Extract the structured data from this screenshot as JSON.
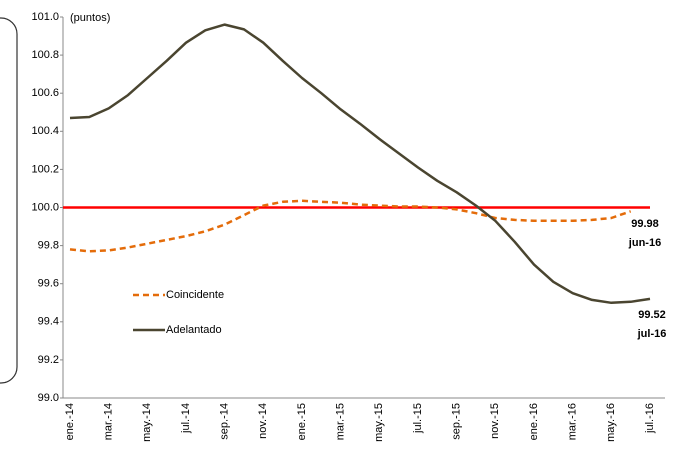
{
  "chart_data": {
    "type": "line",
    "unit_label": "(puntos)",
    "categories": [
      "ene.-14",
      null,
      "mar.-14",
      null,
      "may.-14",
      null,
      "jul.-14",
      null,
      "sep.-14",
      null,
      "nov.-14",
      null,
      "ene.-15",
      null,
      "mar.-15",
      null,
      "may.-15",
      null,
      "jul.-15",
      null,
      "sep.-15",
      null,
      "nov.-15",
      null,
      "ene.-16",
      null,
      "mar.-16",
      null,
      "may.-16",
      null,
      "jul.-16"
    ],
    "series": [
      {
        "name": "Coincidente",
        "color": "#e46c0a",
        "line_style": "dashed",
        "values": [
          99.78,
          99.77,
          99.775,
          99.79,
          99.81,
          99.83,
          99.85,
          99.875,
          99.91,
          99.96,
          100.01,
          100.03,
          100.035,
          100.03,
          100.025,
          100.015,
          100.01,
          100.005,
          100.005,
          100.0,
          99.99,
          99.97,
          99.945,
          99.935,
          99.93,
          99.93,
          99.93,
          99.935,
          99.945,
          99.98,
          null
        ],
        "value_labels": [
          null,
          null,
          null,
          null,
          null,
          null,
          null,
          null,
          null,
          null,
          null,
          null,
          null,
          null,
          null,
          null,
          null,
          null,
          null,
          null,
          null,
          null,
          null,
          null,
          null,
          null,
          null,
          null,
          null,
          "99.98",
          null
        ],
        "annotation": "jun-16"
      },
      {
        "name": "Adelantado",
        "color": "#4a4530",
        "line_style": "solid",
        "values": [
          100.47,
          100.475,
          100.52,
          100.59,
          100.68,
          100.77,
          100.865,
          100.93,
          100.96,
          100.935,
          100.865,
          100.77,
          100.68,
          100.6,
          100.515,
          100.44,
          100.36,
          100.285,
          100.21,
          100.14,
          100.08,
          100.01,
          99.93,
          99.82,
          99.7,
          99.61,
          99.55,
          99.515,
          99.5,
          99.505,
          99.52
        ],
        "value_labels": [
          null,
          null,
          null,
          null,
          null,
          null,
          null,
          null,
          null,
          null,
          null,
          null,
          null,
          null,
          null,
          null,
          null,
          null,
          null,
          null,
          null,
          null,
          null,
          null,
          null,
          null,
          null,
          null,
          null,
          null,
          "99.52"
        ],
        "annotation": "jul-16"
      }
    ],
    "reference_line": {
      "value": 100,
      "color": "#ff0000"
    },
    "ylim": [
      99,
      101
    ],
    "yticks": [
      {
        "value": 99,
        "label": "99.0"
      },
      99.2,
      99.4,
      99.6,
      99.8,
      {
        "value": 100,
        "label": "100.0"
      },
      100.2,
      100.4,
      100.6,
      100.8,
      {
        "value": 101,
        "label": "101.0"
      }
    ],
    "grid": false,
    "legend": "center-left"
  }
}
